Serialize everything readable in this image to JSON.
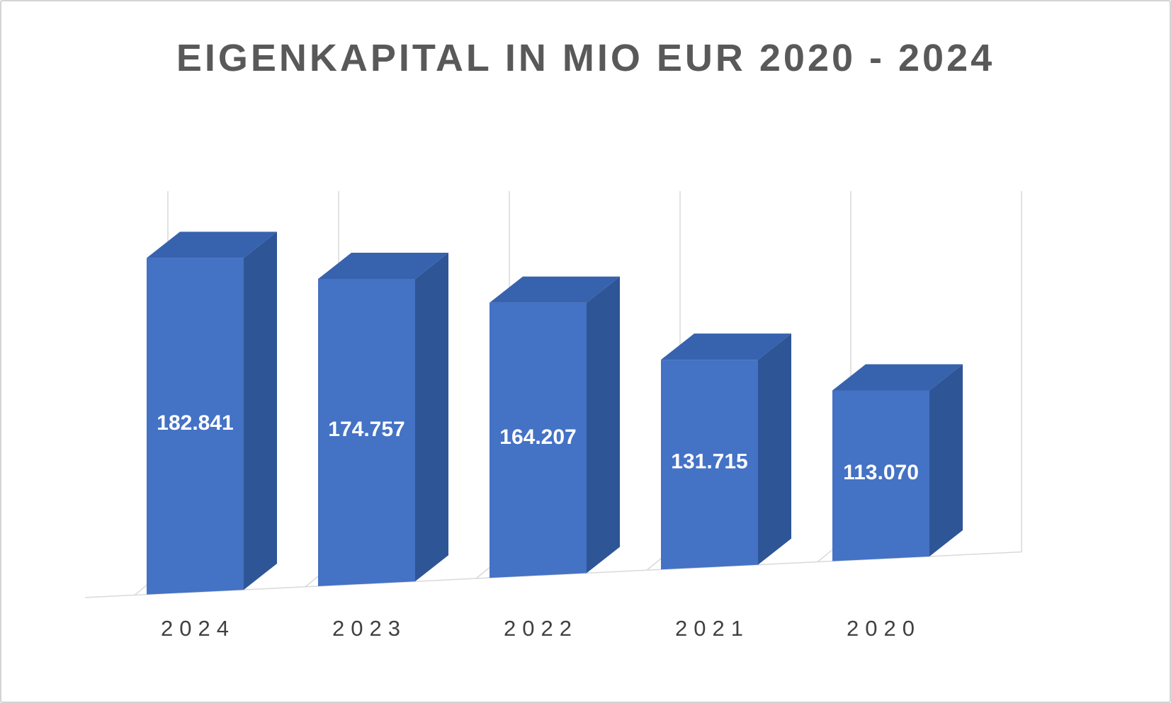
{
  "frame": {
    "background": "#ffffff",
    "border_color": "#d6d3d3"
  },
  "chart_data": {
    "type": "bar",
    "style": "3d-column",
    "title": "EIGENKAPITAL IN MIO EUR 2020 - 2024",
    "categories": [
      "2024",
      "2023",
      "2022",
      "2021",
      "2020"
    ],
    "values": [
      182.841,
      174.757,
      164.207,
      131.715,
      113.07
    ],
    "value_labels": [
      "182.841",
      "174.757",
      "164.207",
      "131.715",
      "113.070"
    ],
    "xlabel": "",
    "ylabel": "",
    "ylim": [
      0,
      200
    ],
    "legend": "none",
    "grid": "vertical-backwall",
    "colors": {
      "bar_front": "#4472C4",
      "bar_top": "#3763AE",
      "bar_side": "#2E5596",
      "value_label": "#FFFFFF",
      "title": "#595959",
      "category_label": "#404040",
      "gridline": "#D9D9D9"
    }
  }
}
